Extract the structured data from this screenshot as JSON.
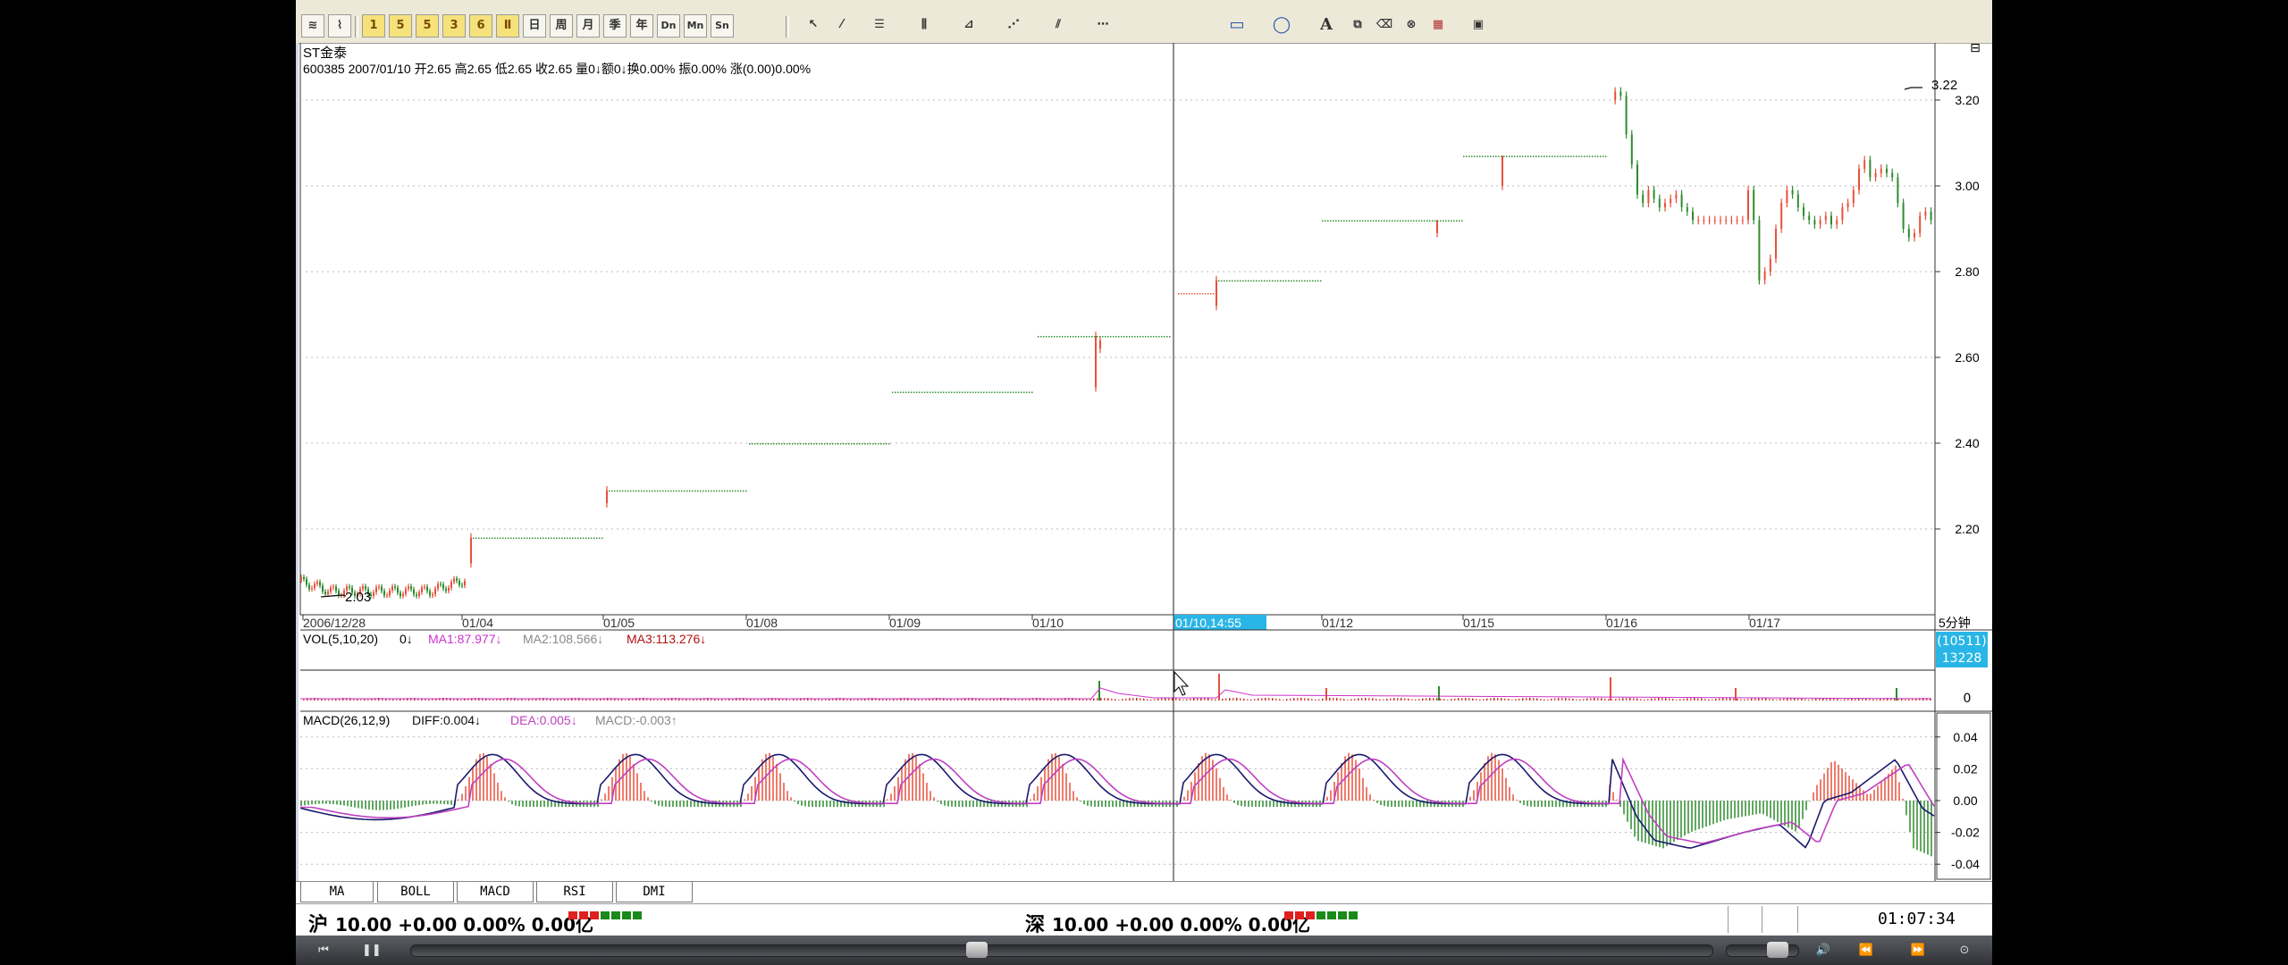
{
  "chart_header": {
    "stock_name": "ST金泰",
    "info_line": "600385 2007/01/10 开2.65 高2.65 低2.65 收2.65 量0↓额0↓换0.00% 振0.00% 涨(0.00)0.00%"
  },
  "price_axis": {
    "labels": [
      "3.20",
      "3.00",
      "2.80",
      "2.60",
      "2.40",
      "2.20"
    ]
  },
  "annotations": {
    "high": "3.22",
    "low": "2.03"
  },
  "date_axis": {
    "labels": [
      "2006/12/28",
      "01/04",
      "01/05",
      "01/08",
      "01/09",
      "01/10",
      "01/12",
      "01/15",
      "01/16",
      "01/17"
    ],
    "cursor_label": "01/10,14:55",
    "period_label": "5分钟"
  },
  "volume_panel": {
    "title": "VOL(5,10,20)",
    "v0": "0↓",
    "ma1": "MA1:87.977↓",
    "ma2": "MA2:108.566↓",
    "ma3": "MA3:113.276↓",
    "badge_top": "(10511)",
    "badge_bottom": "13228",
    "axis_zero": "0"
  },
  "macd_panel": {
    "title": "MACD(26,12,9)",
    "diff": "DIFF:0.004↓",
    "dea": "DEA:0.005↓",
    "macd": "MACD:-0.003↑",
    "axis_labels": [
      "0.04",
      "0.02",
      "0.00",
      "-0.02",
      "-0.04"
    ]
  },
  "tabs": [
    "MA",
    "BOLL",
    "MACD",
    "RSI",
    "DMI"
  ],
  "status": {
    "sh_label": "沪",
    "sh_value": "10.00 +0.00 0.00% 0.00亿",
    "sz_label": "深",
    "sz_value": "10.00 +0.00 0.00% 0.00亿",
    "time": "01:07:34"
  },
  "toolbar": {
    "icons": [
      "kline-icon",
      "line-icon",
      "period-1",
      "period-5",
      "period-15",
      "period-30",
      "period-60",
      "period-day",
      "day",
      "week",
      "month",
      "season",
      "year",
      "dn",
      "mn",
      "sn"
    ],
    "labels": [
      "日",
      "周",
      "月",
      "季",
      "年",
      "Dn",
      "Mn",
      "Sn"
    ]
  },
  "colors": {
    "up": "#e8503c",
    "down": "#2e8b2e",
    "diff": "#1a1a6e",
    "dea": "#c040c0",
    "ma1": "#cc33cc",
    "accent": "#29b6e6"
  },
  "chart_data": {
    "type": "candlestick",
    "ylim_price": [
      2.03,
      3.22
    ],
    "high_value": 3.22,
    "low_value": 2.03,
    "macd_ylim": [
      -0.04,
      0.04
    ],
    "daily_levels": [
      {
        "date": "01/04",
        "price": 2.18
      },
      {
        "date": "01/05",
        "price": 2.29
      },
      {
        "date": "01/08",
        "price": 2.4
      },
      {
        "date": "01/09",
        "price": 2.52
      },
      {
        "date": "01/10",
        "price": 2.65
      },
      {
        "date": "01/11",
        "price": 2.78
      },
      {
        "date": "01/12",
        "price": 2.92
      },
      {
        "date": "01/15",
        "price": 3.07
      }
    ]
  }
}
